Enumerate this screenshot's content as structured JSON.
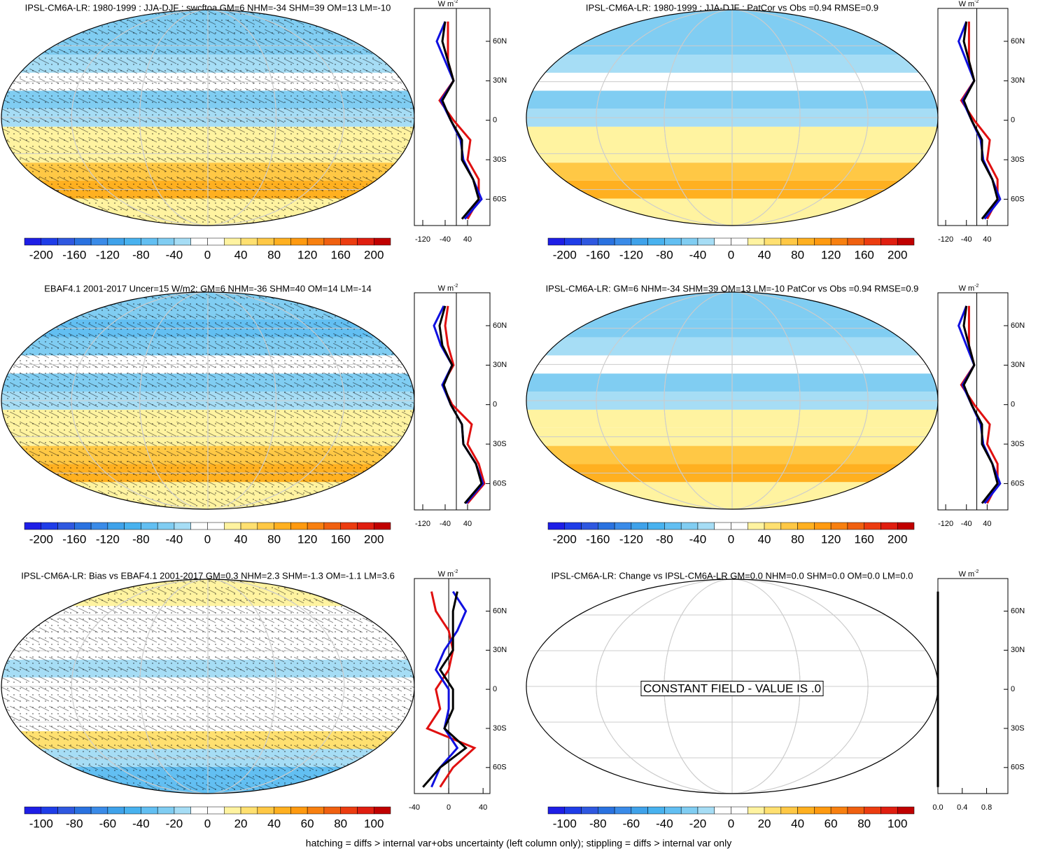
{
  "palette": [
    "#1e1ee6",
    "#1f3de8",
    "#2f58e0",
    "#2a72e0",
    "#3a8be8",
    "#3fa2ea",
    "#48b2ef",
    "#62bff2",
    "#80cdf2",
    "#a6ddf5",
    "#ffffff",
    "#ffffff",
    "#fff3a0",
    "#ffe070",
    "#ffc845",
    "#ffb020",
    "#ff9a10",
    "#f88010",
    "#f06010",
    "#ec3c10",
    "#e01e10",
    "#c00000"
  ],
  "unit": "W m",
  "unit_power": "-2",
  "lat_ticks": [
    {
      "value": 60,
      "label": "60N"
    },
    {
      "value": 30,
      "label": "30N"
    },
    0,
    {
      "value": -30,
      "label": "30S"
    },
    {
      "value": -60,
      "label": "60S"
    }
  ],
  "lat_lim": [
    -80,
    85
  ],
  "lat": [
    -75,
    -60,
    -45,
    -30,
    -15,
    0,
    15,
    30,
    45,
    60,
    75
  ],
  "footer": "hatching = diffs > internal var+obs uncertainty (left column only); stippling = diffs > internal var only",
  "panels": [
    {
      "title": "IPSL-CM6A-LR: 1980-1999 : JJA-DJF : swcftoa GM=6 NHM=-34 SHM=39 OM=13 LM=-10",
      "colorbar": [
        -200,
        -160,
        -120,
        -80,
        -40,
        0,
        40,
        80,
        120,
        160,
        200
      ],
      "xlim": [
        -150,
        120
      ],
      "xticks": [
        -120,
        -40,
        40
      ],
      "series": [
        {
          "color": "#e01010",
          "values": [
            40,
            80,
            80,
            40,
            50,
            -10,
            -60,
            -10,
            -30,
            -30,
            -30
          ]
        },
        {
          "color": "#1010e0",
          "values": [
            30,
            90,
            60,
            25,
            15,
            -20,
            -55,
            -10,
            -40,
            -70,
            -40
          ]
        },
        {
          "color": "#000000",
          "values": [
            20,
            80,
            60,
            20,
            20,
            -20,
            -50,
            -10,
            -30,
            -50,
            -40
          ]
        }
      ]
    },
    {
      "title": "IPSL-CM6A-LR: 1980-1999 : JJA-DJF : PatCor vs Obs =0.94 RMSE=0.9",
      "colorbar": [
        -200,
        -160,
        -120,
        -80,
        -40,
        0,
        40,
        80,
        120,
        160,
        200
      ],
      "xlim": [
        -150,
        120
      ],
      "xticks": [
        -120,
        -40,
        40
      ],
      "series": [
        {
          "color": "#e01010",
          "values": [
            40,
            80,
            80,
            40,
            50,
            -10,
            -60,
            -10,
            -30,
            -30,
            -30
          ]
        },
        {
          "color": "#1010e0",
          "values": [
            30,
            90,
            60,
            25,
            15,
            -20,
            -55,
            -10,
            -40,
            -70,
            -40
          ]
        },
        {
          "color": "#000000",
          "values": [
            20,
            80,
            60,
            20,
            20,
            -20,
            -50,
            -10,
            -30,
            -50,
            -40
          ]
        }
      ]
    },
    {
      "title": "EBAF4.1 2001-2017 Uncer=15 W/m2: GM=6 NHM=-36 SHM=40 OM=14 LM=-14",
      "colorbar": [
        -200,
        -160,
        -120,
        -80,
        -40,
        0,
        40,
        80,
        120,
        160,
        200
      ],
      "xlim": [
        -150,
        120
      ],
      "xticks": [
        -120,
        -40,
        40
      ],
      "series": [
        {
          "color": "#e01010",
          "values": [
            40,
            100,
            80,
            40,
            55,
            -15,
            -50,
            -10,
            -30,
            -40,
            -30
          ]
        },
        {
          "color": "#1010e0",
          "values": [
            35,
            95,
            70,
            25,
            20,
            -20,
            -50,
            -15,
            -55,
            -80,
            -45
          ]
        },
        {
          "color": "#000000",
          "values": [
            30,
            90,
            70,
            25,
            20,
            -20,
            -45,
            -15,
            -50,
            -60,
            -40
          ]
        }
      ]
    },
    {
      "title": "IPSL-CM6A-LR: GM=6 NHM=-34 SHM=39 OM=13 LM=-10 PatCor vs Obs =0.94 RMSE=0.9",
      "colorbar": [
        -200,
        -160,
        -120,
        -80,
        -40,
        0,
        40,
        80,
        120,
        160,
        200
      ],
      "xlim": [
        -150,
        120
      ],
      "xticks": [
        -120,
        -40,
        40
      ],
      "series": [
        {
          "color": "#e01010",
          "values": [
            40,
            80,
            80,
            40,
            50,
            -10,
            -60,
            -10,
            -30,
            -30,
            -30
          ]
        },
        {
          "color": "#1010e0",
          "values": [
            30,
            90,
            60,
            25,
            15,
            -20,
            -55,
            -10,
            -40,
            -70,
            -40
          ]
        },
        {
          "color": "#000000",
          "values": [
            20,
            80,
            60,
            20,
            20,
            -20,
            -50,
            -10,
            -30,
            -50,
            -40
          ]
        }
      ]
    },
    {
      "title": "IPSL-CM6A-LR: Bias vs EBAF4.1 2001-2017 GM=0.3 NHM=2.3 SHM=-1.3 OM=-1.1 LM=3.6",
      "colorbar": [
        -100,
        -80,
        -60,
        -40,
        -20,
        0,
        20,
        40,
        60,
        80,
        100
      ],
      "xlim": [
        -40,
        48
      ],
      "xticks": [
        -40,
        0,
        40
      ],
      "series": [
        {
          "color": "#e01010",
          "values": [
            -10,
            5,
            30,
            -25,
            -10,
            -15,
            0,
            5,
            0,
            -15,
            -20
          ]
        },
        {
          "color": "#1010e0",
          "values": [
            -20,
            -10,
            10,
            -5,
            0,
            0,
            -15,
            -5,
            10,
            20,
            5
          ]
        },
        {
          "color": "#000000",
          "values": [
            -30,
            -10,
            20,
            -5,
            5,
            5,
            -10,
            5,
            5,
            5,
            10
          ]
        }
      ]
    },
    {
      "title": "IPSL-CM6A-LR: Change vs IPSL-CM6A-LR GM=0.0 NHM=0.0 SHM=0.0 OM=0.0 LM=0.0",
      "colorbar": [
        -100,
        -80,
        -60,
        -40,
        -20,
        0,
        20,
        40,
        60,
        80,
        100
      ],
      "xlim": [
        0,
        1.15
      ],
      "xticks": [
        {
          "value": 0,
          "label": "0.0"
        },
        0.4,
        0.8
      ],
      "note": "CONSTANT FIELD - VALUE IS .0",
      "series": [
        {
          "color": "#000000",
          "values": [
            0,
            0,
            0,
            0,
            0,
            0,
            0,
            0,
            0,
            0,
            0
          ]
        }
      ]
    }
  ]
}
